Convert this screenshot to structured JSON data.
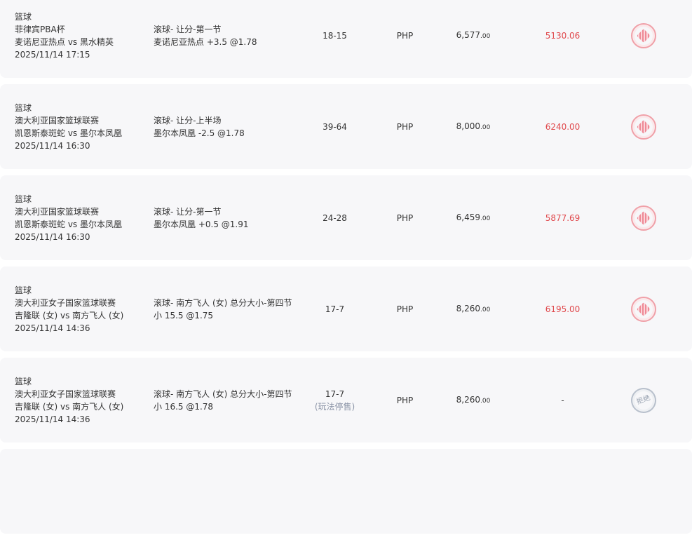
{
  "bets": [
    {
      "sport": "篮球",
      "league": "菲律宾PBA杯",
      "match": "麦诺尼亚热点 vs 黑水精英",
      "time": "2025/11/14 17:15",
      "market": "滚球- 让分-第一节",
      "selection": "麦诺尼亚热点 +3.5 @1.78",
      "score": "18-15",
      "note": "",
      "currency": "PHP",
      "stake": "6,577",
      "stake_dec": ".00",
      "payout": "5130.06",
      "status": "settled",
      "stamp_color": "#e0484c"
    },
    {
      "sport": "篮球",
      "league": "澳大利亚国家篮球联赛",
      "match": "凯恩斯泰斑蛇 vs 墨尔本凤凰",
      "time": "2025/11/14 16:30",
      "market": "滚球- 让分-上半场",
      "selection": "墨尔本凤凰 -2.5 @1.78",
      "score": "39-64",
      "note": "",
      "currency": "PHP",
      "stake": "8,000",
      "stake_dec": ".00",
      "payout": "6240.00",
      "status": "settled",
      "stamp_color": "#e0484c"
    },
    {
      "sport": "篮球",
      "league": "澳大利亚国家篮球联赛",
      "match": "凯恩斯泰斑蛇 vs 墨尔本凤凰",
      "time": "2025/11/14 16:30",
      "market": "滚球- 让分-第一节",
      "selection": "墨尔本凤凰 +0.5 @1.91",
      "score": "24-28",
      "note": "",
      "currency": "PHP",
      "stake": "6,459",
      "stake_dec": ".00",
      "payout": "5877.69",
      "status": "settled",
      "stamp_color": "#e0484c"
    },
    {
      "sport": "篮球",
      "league": "澳大利亚女子国家篮球联赛",
      "match": "吉隆联 (女) vs 南方飞人 (女)",
      "time": "2025/11/14 14:36",
      "market": "滚球- 南方飞人 (女) 总分大小-第四节",
      "selection": "小 15.5 @1.75",
      "score": "17-7",
      "note": "",
      "currency": "PHP",
      "stake": "8,260",
      "stake_dec": ".00",
      "payout": "6195.00",
      "status": "settled",
      "stamp_color": "#e0484c"
    },
    {
      "sport": "篮球",
      "league": "澳大利亚女子国家篮球联赛",
      "match": "吉隆联 (女) vs 南方飞人 (女)",
      "time": "2025/11/14 14:36",
      "market": "滚球- 南方飞人 (女) 总分大小-第四节",
      "selection": "小 16.5 @1.78",
      "score": "17-7",
      "note": "(玩法停售)",
      "currency": "PHP",
      "stake": "8,260",
      "stake_dec": ".00",
      "payout": "-",
      "status": "rejected",
      "stamp_label": "拒绝",
      "stamp_color": "#9aa4b2"
    }
  ]
}
